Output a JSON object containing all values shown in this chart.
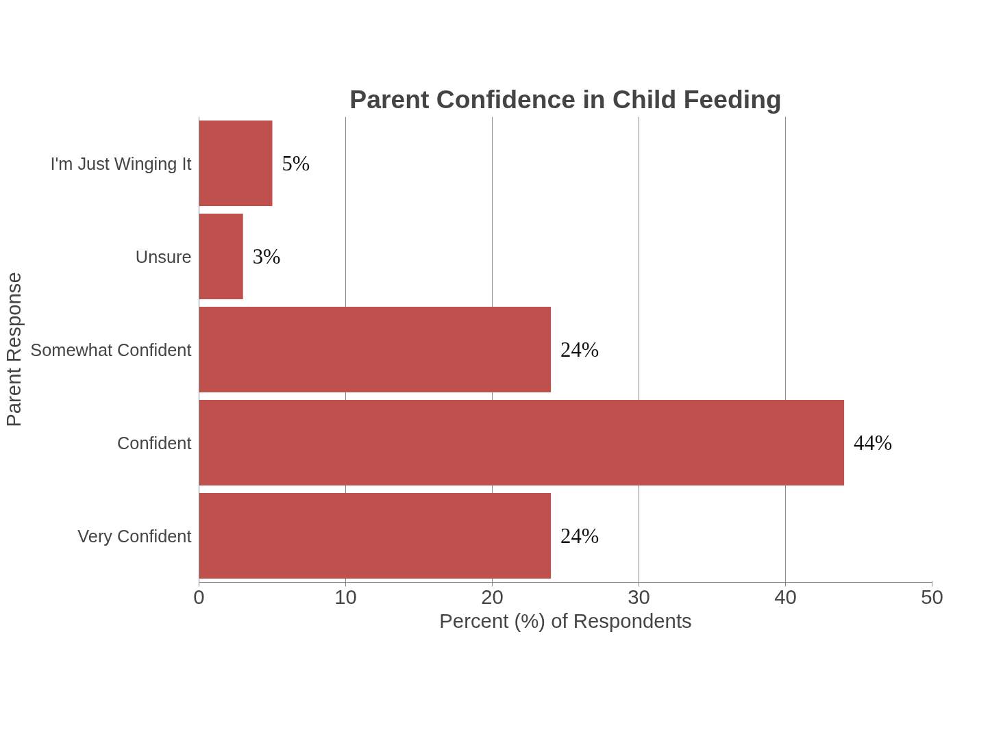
{
  "chart_data": {
    "type": "bar",
    "orientation": "horizontal",
    "title": "Parent Confidence in Child Feeding",
    "xlabel": "Percent (%) of Respondents",
    "ylabel": "Parent Response",
    "categories": [
      "I'm Just Winging It",
      "Unsure",
      "Somewhat Confident",
      "Confident",
      "Very Confident"
    ],
    "values": [
      5,
      3,
      24,
      44,
      24
    ],
    "value_labels": [
      "5%",
      "3%",
      "24%",
      "44%",
      "24%"
    ],
    "color": "#c0504d",
    "xlim": [
      0,
      50
    ],
    "xticks": [
      0,
      10,
      20,
      30,
      40,
      50
    ],
    "grid": "x"
  }
}
